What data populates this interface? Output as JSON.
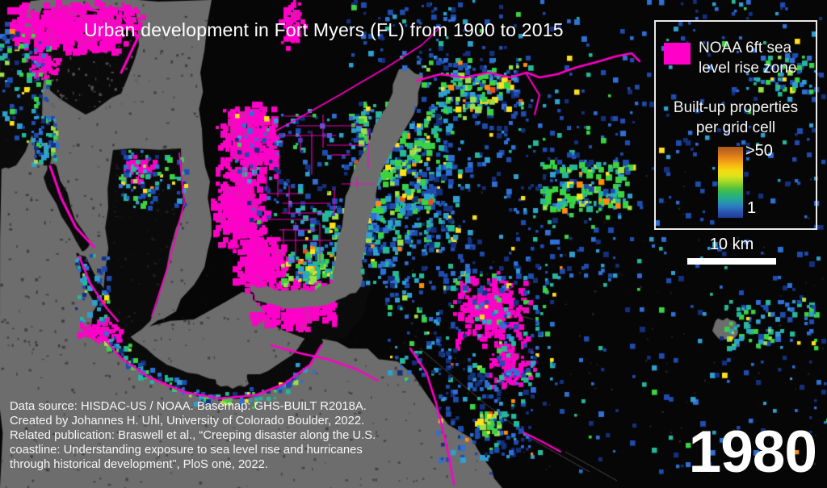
{
  "figure": {
    "title": "Urban development in Fort Myers (FL) from 1900 to 2015",
    "year_label": "1980",
    "scale_bar_label": "10 km",
    "credits": [
      "Data source: HISDAC-US / NOAA. Basemap: GHS-BUILT R2018A.",
      "Created by Johannes H. Uhl, University of Colorado Boulder, 2022.",
      "Related publication: Braswell et al., “Creeping disaster along the U.S.",
      "coastline: Understanding exposure to sea level rise and hurricanes",
      "through historical development”, PloS one, 2022."
    ],
    "legend": {
      "slr_label_line1": "NOAA 6ft sea",
      "slr_label_line2": "level rise zone",
      "ramp_title_line1": "Built-up properties",
      "ramp_title_line2": "per grid cell",
      "ramp_max_label": ">50",
      "ramp_min_label": "1",
      "slr_color": "#ff00c8",
      "ramp_colors": [
        "#a85a20",
        "#cc6e1c",
        "#ea8c18",
        "#f7b312",
        "#f6d910",
        "#d9e41c",
        "#9ed62b",
        "#55c23a",
        "#2cb56e",
        "#23a39b",
        "#2d7fc0",
        "#2a55ae",
        "#1f3d96"
      ]
    }
  },
  "map": {
    "colors": {
      "background": "#060606",
      "water": "#6d6d6d",
      "land": "#0a0a0a",
      "magenta": "#ff00c8"
    },
    "palettes": {
      "blue": [
        [
          "#14307c",
          26
        ],
        [
          "#1e4cb0",
          30
        ],
        [
          "#2f6fd6",
          20
        ],
        [
          "#2f9fd0",
          12
        ],
        [
          "#25b899",
          7
        ],
        [
          "#3bd344",
          3
        ],
        [
          "#ffe01a",
          1.5
        ],
        [
          "#ff8c12",
          0.5
        ]
      ],
      "teal": [
        [
          "#1e4cb0",
          14
        ],
        [
          "#2f6fd6",
          16
        ],
        [
          "#2f9fd0",
          22
        ],
        [
          "#25b899",
          22
        ],
        [
          "#3bd344",
          16
        ],
        [
          "#9be04a",
          6
        ],
        [
          "#ffe01a",
          3
        ],
        [
          "#ff8c12",
          1
        ]
      ],
      "mixed": [
        [
          "#14307c",
          12
        ],
        [
          "#1e4cb0",
          22
        ],
        [
          "#2f6fd6",
          18
        ],
        [
          "#2f9fd0",
          14
        ],
        [
          "#25b899",
          14
        ],
        [
          "#3bd344",
          12
        ],
        [
          "#9be04a",
          4
        ],
        [
          "#ffe01a",
          3
        ],
        [
          "#ff8c12",
          1
        ],
        [
          "#e2541c",
          0.6
        ]
      ],
      "green": [
        [
          "#25b899",
          16
        ],
        [
          "#3bd344",
          34
        ],
        [
          "#9be04a",
          14
        ],
        [
          "#2f9fd0",
          12
        ],
        [
          "#1e4cb0",
          8
        ],
        [
          "#ffe01a",
          10
        ],
        [
          "#ff8c12",
          4
        ],
        [
          "#e2541c",
          1.5
        ]
      ],
      "magenta": [
        [
          "#ff00c8",
          85
        ],
        [
          "#e414b4",
          15
        ]
      ]
    },
    "water": [
      [
        50,
        0,
        262,
        0,
        248,
        90,
        250,
        160,
        260,
        225,
        262,
        292,
        246,
        344,
        218,
        386,
        186,
        404,
        150,
        416,
        110,
        424,
        60,
        430,
        20,
        428,
        0,
        420,
        0,
        60,
        28,
        18
      ],
      [
        494,
        86,
        524,
        94,
        512,
        142,
        472,
        212,
        458,
        268,
        448,
        322,
        446,
        356,
        428,
        368,
        392,
        380,
        352,
        382,
        316,
        372,
        308,
        352,
        342,
        360,
        386,
        362,
        412,
        350,
        416,
        318,
        426,
        262,
        440,
        206,
        478,
        134
      ],
      [
        0,
        414,
        150,
        408,
        240,
        396,
        300,
        362,
        326,
        380,
        380,
        412,
        432,
        432,
        492,
        448,
        540,
        506,
        598,
        568,
        622,
        605,
        0,
        605
      ]
    ],
    "land": [
      [
        52,
        10,
        168,
        16,
        172,
        56,
        150,
        116,
        106,
        142,
        62,
        112,
        48,
        52
      ],
      [
        0,
        36,
        58,
        40,
        52,
        150,
        20,
        205,
        0,
        210
      ],
      [
        42,
        144,
        66,
        148,
        62,
        204,
        44,
        200
      ],
      [
        58,
        202,
        70,
        206,
        88,
        258,
        112,
        300,
        102,
        312,
        76,
        268,
        54,
        220
      ],
      [
        140,
        186,
        224,
        184,
        230,
        254,
        206,
        334,
        186,
        398,
        148,
        428,
        112,
        414,
        130,
        338,
        134,
        258
      ],
      [
        94,
        314,
        106,
        318,
        136,
        376,
        150,
        398,
        138,
        406,
        108,
        360
      ],
      [
        118,
        408,
        150,
        442,
        190,
        468,
        232,
        486,
        276,
        494,
        318,
        490,
        354,
        476,
        386,
        450,
        400,
        424,
        384,
        412,
        362,
        440,
        322,
        464,
        276,
        472,
        232,
        462,
        192,
        442,
        158,
        414,
        136,
        398
      ],
      [
        316,
        338,
        424,
        326,
        452,
        334,
        460,
        358,
        446,
        398,
        418,
        422,
        378,
        420,
        338,
        402,
        320,
        376
      ]
    ],
    "water_top": [
      [
        266,
        462,
        286,
        458,
        306,
        464,
        308,
        476,
        288,
        482,
        268,
        476
      ],
      [
        886,
        398,
        900,
        394,
        912,
        400,
        914,
        412,
        904,
        422,
        890,
        420,
        882,
        410
      ],
      [
        588,
        374,
        600,
        372,
        604,
        382,
        592,
        386
      ]
    ],
    "water_over": [
      [
        494,
        86,
        524,
        94,
        512,
        142,
        472,
        212,
        458,
        268,
        448,
        322,
        446,
        356,
        428,
        368,
        392,
        380,
        352,
        382,
        316,
        372,
        308,
        352,
        342,
        360,
        386,
        362,
        412,
        350,
        416,
        318,
        426,
        262,
        440,
        206,
        478,
        134
      ]
    ],
    "speckles": [
      {
        "r": [
          0,
          0,
          265,
          430
        ],
        "n": 260,
        "c": "#1a1a1a",
        "s": 3,
        "a": 0.55
      },
      {
        "r": [
          0,
          390,
          600,
          215
        ],
        "n": 260,
        "c": "#1a1a1a",
        "s": 3,
        "a": 0.5
      },
      {
        "r": [
          52,
          12,
          120,
          128
        ],
        "n": 90,
        "c": "#606060",
        "s": 3,
        "a": 0.8
      },
      {
        "r": [
          500,
          200,
          520,
          400
        ],
        "n": 120,
        "c": "#3d3d3d",
        "s": 2,
        "a": 0.6
      },
      {
        "r": [
          140,
          190,
          90,
          230
        ],
        "n": 60,
        "c": "#2a2a2a",
        "s": 3,
        "a": 0.6
      }
    ],
    "trails": [
      {
        "pts": [
          520,
          432,
          600,
          500,
          660,
          545,
          730,
          585
        ],
        "c": "#474747",
        "w": 1
      },
      {
        "pts": [
          598,
          378,
          660,
          396
        ],
        "c": "#474747",
        "w": 1
      },
      {
        "pts": [
          700,
          560,
          764,
          596
        ],
        "c": "#474747",
        "w": 1
      }
    ],
    "clusters": [
      {
        "t": "blob",
        "r": [
          2,
          0,
          178,
          66
        ],
        "n": 520,
        "s": 7,
        "p": "magenta"
      },
      {
        "t": "blob",
        "r": [
          28,
          56,
          52,
          44
        ],
        "n": 80,
        "s": 5,
        "p": "magenta"
      },
      {
        "t": "blob",
        "r": [
          264,
          122,
          84,
          104
        ],
        "n": 300,
        "s": 7,
        "p": "magenta"
      },
      {
        "t": "blob",
        "r": [
          260,
          208,
          72,
          100
        ],
        "n": 280,
        "s": 7,
        "p": "magenta"
      },
      {
        "t": "blob",
        "r": [
          286,
          290,
          74,
          70
        ],
        "n": 220,
        "s": 7,
        "p": "magenta"
      },
      {
        "t": "blob",
        "r": [
          306,
          344,
          116,
          66
        ],
        "n": 300,
        "s": 7,
        "p": "magenta"
      },
      {
        "t": "blob",
        "r": [
          556,
          336,
          104,
          98
        ],
        "n": 260,
        "s": 6,
        "p": "magenta"
      },
      {
        "t": "blob",
        "r": [
          600,
          422,
          64,
          62
        ],
        "n": 100,
        "s": 5,
        "p": "magenta"
      },
      {
        "t": "blob",
        "r": [
          346,
          0,
          30,
          60
        ],
        "n": 70,
        "s": 5,
        "p": "magenta"
      },
      {
        "t": "blob",
        "r": [
          152,
          192,
          44,
          32
        ],
        "n": 60,
        "s": 5,
        "p": "magenta"
      },
      {
        "t": "blob",
        "r": [
          94,
          390,
          58,
          38
        ],
        "n": 80,
        "s": 5,
        "p": "magenta"
      },
      {
        "t": "cells",
        "r": [
          500,
          0,
          520,
          210
        ],
        "n": 240,
        "s": 5,
        "p": "blue"
      },
      {
        "t": "cells",
        "r": [
          420,
          0,
          160,
          95
        ],
        "n": 60,
        "s": 5,
        "p": "blue"
      },
      {
        "t": "cells",
        "r": [
          760,
          205,
          260,
          185
        ],
        "n": 90,
        "s": 5,
        "p": "blue"
      },
      {
        "t": "cells",
        "r": [
          600,
          398,
          424,
          195
        ],
        "n": 110,
        "s": 5,
        "p": "blue"
      },
      {
        "t": "cells",
        "r": [
          560,
          140,
          210,
          95
        ],
        "n": 70,
        "s": 5,
        "p": "blue"
      },
      {
        "t": "cells",
        "r": [
          0,
          26,
          60,
          155
        ],
        "n": 95,
        "s": 5,
        "p": "mixed"
      },
      {
        "t": "cells",
        "r": [
          40,
          144,
          30,
          60
        ],
        "n": 55,
        "s": 5,
        "p": "mixed"
      },
      {
        "t": "cells",
        "r": [
          146,
          186,
          84,
          70
        ],
        "n": 85,
        "s": 5,
        "p": "mixed"
      },
      {
        "t": "cells",
        "r": [
          516,
          70,
          140,
          72
        ],
        "n": 130,
        "s": 5,
        "p": "mixed"
      },
      {
        "t": "cells",
        "r": [
          545,
          90,
          85,
          55
        ],
        "n": 75,
        "s": 6,
        "p": "green"
      },
      {
        "t": "cells",
        "r": [
          670,
          200,
          112,
          60
        ],
        "n": 130,
        "s": 6,
        "p": "green"
      },
      {
        "t": "cells",
        "r": [
          934,
          66,
          80,
          50
        ],
        "n": 60,
        "s": 5,
        "p": "teal"
      },
      {
        "t": "cells",
        "r": [
          896,
          370,
          116,
          62
        ],
        "n": 100,
        "s": 5,
        "p": "teal"
      },
      {
        "t": "cells",
        "r": [
          290,
          136,
          182,
          148
        ],
        "n": 160,
        "s": 5,
        "p": "blue"
      },
      {
        "t": "cells",
        "r": [
          430,
          126,
          132,
          190
        ],
        "n": 380,
        "s": 6,
        "p": "mixed"
      },
      {
        "t": "cells",
        "r": [
          443,
          140,
          88,
          125
        ],
        "n": 160,
        "s": 6,
        "p": "green"
      },
      {
        "t": "cells",
        "r": [
          370,
          252,
          122,
          100
        ],
        "n": 180,
        "s": 6,
        "p": "teal"
      },
      {
        "t": "cells",
        "r": [
          498,
          226,
          265,
          128
        ],
        "n": 170,
        "s": 5,
        "p": "blue"
      },
      {
        "t": "cells",
        "r": [
          476,
          336,
          210,
          138
        ],
        "n": 230,
        "s": 5,
        "p": "mixed"
      },
      {
        "t": "cells",
        "r": [
          348,
          310,
          72,
          46
        ],
        "n": 60,
        "s": 6,
        "p": "green"
      },
      {
        "t": "cells",
        "r": [
          92,
          315,
          44,
          85
        ],
        "n": 55,
        "s": 5,
        "p": "mixed"
      },
      {
        "t": "cells",
        "r": [
          542,
          452,
          118,
          118
        ],
        "n": 140,
        "s": 5,
        "p": "blue"
      },
      {
        "t": "cells",
        "r": [
          588,
          510,
          38,
          30
        ],
        "n": 32,
        "s": 6,
        "p": "green"
      },
      {
        "t": "path",
        "pts": [
          130,
          418,
          162,
          450,
          198,
          472,
          238,
          488,
          278,
          496,
          318,
          491,
          352,
          477,
          384,
          453
        ],
        "n": 130,
        "s": 5,
        "sp": 13,
        "p": "mixed"
      }
    ],
    "canal_grids": [
      {
        "r": [
          296,
          138,
          168,
          128
        ],
        "vstep": 14,
        "hstep": 12,
        "w": 1.2
      },
      {
        "r": [
          300,
          266,
          110,
          60
        ],
        "vstep": 15,
        "hstep": 13,
        "w": 1.1
      }
    ],
    "lines": [
      {
        "pts": [
          58,
          14,
          102,
          10,
          152,
          20,
          170,
          48,
          150,
          90
        ],
        "w": 3
      },
      {
        "pts": [
          62,
          206,
          76,
          246,
          94,
          282,
          116,
          306
        ],
        "w": 3
      },
      {
        "pts": [
          98,
          318,
          112,
          352,
          132,
          382,
          146,
          398
        ],
        "w": 2.5
      },
      {
        "pts": [
          124,
          414,
          150,
          444,
          185,
          468,
          228,
          486,
          272,
          494,
          316,
          490,
          352,
          476,
          384,
          452,
          398,
          428
        ],
        "w": 2.5
      },
      {
        "pts": [
          222,
          190,
          228,
          252,
          208,
          330,
          188,
          392
        ],
        "w": 1.8
      },
      {
        "pts": [
          516,
          100,
          545,
          92,
          575,
          96,
          605,
          90,
          632,
          96,
          652,
          90,
          668,
          96,
          690,
          92,
          712,
          84,
          742,
          76,
          762,
          70,
          782,
          66,
          792,
          76
        ],
        "w": 2.5
      },
      {
        "pts": [
          652,
          92,
          668,
          118,
          662,
          142
        ],
        "w": 2
      },
      {
        "pts": [
          336,
          428,
          372,
          438,
          408,
          446,
          442,
          458,
          468,
          472
        ],
        "w": 2.5
      },
      {
        "pts": [
          508,
          432,
          528,
          462,
          540,
          500,
          548,
          532,
          556,
          566,
          562,
          600
        ],
        "w": 2.5
      },
      {
        "pts": [
          648,
          536,
          672,
          548,
          694,
          560
        ],
        "w": 2
      },
      {
        "pts": [
          298,
          186,
          360,
          152,
          420,
          118,
          478,
          84,
          522,
          56,
          545,
          34
        ],
        "w": 1.6
      }
    ]
  }
}
